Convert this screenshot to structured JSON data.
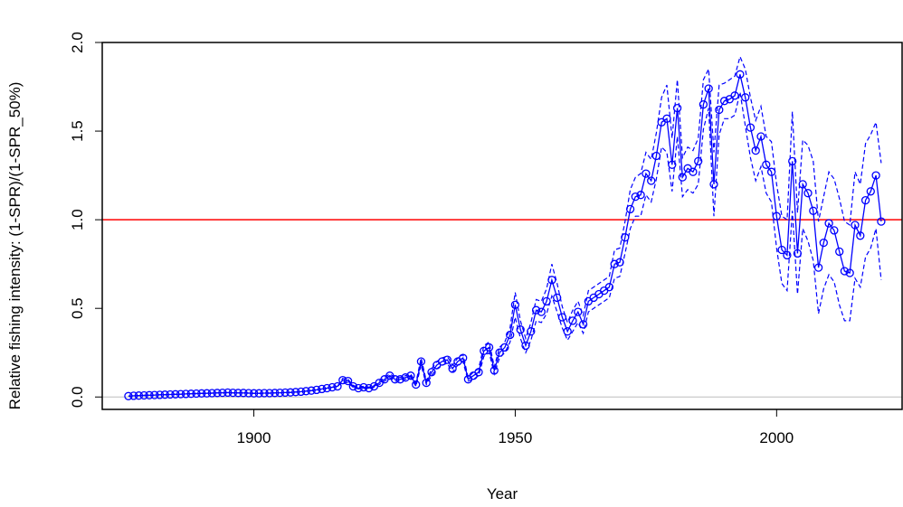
{
  "chart_data": {
    "type": "line",
    "title": "",
    "xlabel": "Year",
    "ylabel": "Relative fishing intensity: (1-SPR)/(1-SPR_50%)",
    "xlim": [
      1871,
      2024
    ],
    "ylim": [
      -0.07,
      2.0
    ],
    "x_ticks": [
      "1900",
      "1950",
      "2000"
    ],
    "x_tick_values": [
      1900,
      1950,
      2000
    ],
    "y_ticks": [
      "0.0",
      "0.5",
      "1.0",
      "1.5",
      "2.0"
    ],
    "y_tick_values": [
      0,
      0.5,
      1.0,
      1.5,
      2.0
    ],
    "reference_lines": [
      {
        "y": 1.0,
        "color": "#ff0000"
      },
      {
        "y": 0.0,
        "color": "#bdbdbd"
      }
    ],
    "series_color": "#0000ff",
    "x": [
      1876,
      1877,
      1878,
      1879,
      1880,
      1881,
      1882,
      1883,
      1884,
      1885,
      1886,
      1887,
      1888,
      1889,
      1890,
      1891,
      1892,
      1893,
      1894,
      1895,
      1896,
      1897,
      1898,
      1899,
      1900,
      1901,
      1902,
      1903,
      1904,
      1905,
      1906,
      1907,
      1908,
      1909,
      1910,
      1911,
      1912,
      1913,
      1914,
      1915,
      1916,
      1917,
      1918,
      1919,
      1920,
      1921,
      1922,
      1923,
      1924,
      1925,
      1926,
      1927,
      1928,
      1929,
      1930,
      1931,
      1932,
      1933,
      1934,
      1935,
      1936,
      1937,
      1938,
      1939,
      1940,
      1941,
      1942,
      1943,
      1944,
      1945,
      1946,
      1947,
      1948,
      1949,
      1950,
      1951,
      1952,
      1953,
      1954,
      1955,
      1956,
      1957,
      1958,
      1959,
      1960,
      1961,
      1962,
      1963,
      1964,
      1965,
      1966,
      1967,
      1968,
      1969,
      1970,
      1971,
      1972,
      1973,
      1974,
      1975,
      1976,
      1977,
      1978,
      1979,
      1980,
      1981,
      1982,
      1983,
      1984,
      1985,
      1986,
      1987,
      1988,
      1989,
      1990,
      1991,
      1992,
      1993,
      1994,
      1995,
      1996,
      1997,
      1998,
      1999,
      2000,
      2001,
      2002,
      2003,
      2004,
      2005,
      2006,
      2007,
      2008,
      2009,
      2010,
      2011,
      2012,
      2013,
      2014,
      2015,
      2016,
      2017,
      2018,
      2019,
      2020
    ],
    "series": [
      {
        "values": [
          0.005,
          0.007,
          0.008,
          0.009,
          0.01,
          0.011,
          0.012,
          0.013,
          0.014,
          0.015,
          0.016,
          0.017,
          0.018,
          0.019,
          0.02,
          0.021,
          0.022,
          0.023,
          0.024,
          0.025,
          0.024,
          0.023,
          0.023,
          0.022,
          0.021,
          0.021,
          0.022,
          0.022,
          0.023,
          0.024,
          0.025,
          0.026,
          0.028,
          0.03,
          0.033,
          0.036,
          0.04,
          0.045,
          0.05,
          0.055,
          0.06,
          0.095,
          0.09,
          0.06,
          0.05,
          0.055,
          0.05,
          0.06,
          0.08,
          0.1,
          0.12,
          0.1,
          0.1,
          0.11,
          0.12,
          0.07,
          0.2,
          0.08,
          0.14,
          0.18,
          0.2,
          0.21,
          0.16,
          0.2,
          0.22,
          0.1,
          0.12,
          0.14,
          0.26,
          0.28,
          0.15,
          0.25,
          0.28,
          0.35,
          0.52,
          0.38,
          0.29,
          0.37,
          0.49,
          0.48,
          0.54,
          0.66,
          0.56,
          0.45,
          0.37,
          0.43,
          0.48,
          0.41,
          0.54,
          0.56,
          0.58,
          0.6,
          0.62,
          0.75,
          0.76,
          0.9,
          1.06,
          1.13,
          1.14,
          1.26,
          1.22,
          1.36,
          1.55,
          1.57,
          1.31,
          1.63,
          1.24,
          1.29,
          1.27,
          1.33,
          1.65,
          1.74,
          1.2,
          1.62,
          1.67,
          1.68,
          1.7,
          1.82,
          1.69,
          1.52,
          1.39,
          1.47,
          1.31,
          1.27,
          1.02,
          0.83,
          0.8,
          1.33,
          0.81,
          1.2,
          1.15,
          1.05,
          0.73,
          0.87,
          0.98,
          0.94,
          0.82,
          0.71,
          0.7,
          0.97,
          0.91,
          1.11,
          1.16,
          1.25,
          0.99
        ]
      },
      {
        "values": [
          0.005,
          0.007,
          0.008,
          0.009,
          0.01,
          0.011,
          0.012,
          0.013,
          0.014,
          0.015,
          0.016,
          0.017,
          0.018,
          0.019,
          0.02,
          0.021,
          0.022,
          0.023,
          0.024,
          0.025,
          0.024,
          0.023,
          0.023,
          0.022,
          0.021,
          0.021,
          0.022,
          0.022,
          0.023,
          0.024,
          0.025,
          0.026,
          0.028,
          0.03,
          0.033,
          0.036,
          0.04,
          0.045,
          0.05,
          0.055,
          0.06,
          0.105,
          0.1,
          0.065,
          0.055,
          0.06,
          0.055,
          0.065,
          0.09,
          0.11,
          0.13,
          0.11,
          0.11,
          0.12,
          0.13,
          0.08,
          0.22,
          0.09,
          0.16,
          0.2,
          0.22,
          0.23,
          0.18,
          0.22,
          0.24,
          0.11,
          0.14,
          0.16,
          0.29,
          0.31,
          0.17,
          0.28,
          0.31,
          0.39,
          0.59,
          0.43,
          0.33,
          0.42,
          0.55,
          0.54,
          0.61,
          0.75,
          0.64,
          0.51,
          0.42,
          0.49,
          0.54,
          0.46,
          0.6,
          0.62,
          0.64,
          0.66,
          0.68,
          0.83,
          0.84,
          0.99,
          1.17,
          1.24,
          1.26,
          1.38,
          1.34,
          1.49,
          1.69,
          1.76,
          1.46,
          1.79,
          1.35,
          1.41,
          1.39,
          1.46,
          1.79,
          1.85,
          1.38,
          1.76,
          1.77,
          1.79,
          1.81,
          1.92,
          1.85,
          1.69,
          1.56,
          1.64,
          1.47,
          1.44,
          1.2,
          1.02,
          1.0,
          1.61,
          1.04,
          1.45,
          1.42,
          1.33,
          0.99,
          1.13,
          1.27,
          1.23,
          1.12,
          0.99,
          0.97,
          1.27,
          1.2,
          1.43,
          1.48,
          1.55,
          1.32
        ]
      },
      {
        "values": [
          0.005,
          0.007,
          0.008,
          0.009,
          0.01,
          0.011,
          0.012,
          0.013,
          0.014,
          0.015,
          0.016,
          0.017,
          0.018,
          0.019,
          0.02,
          0.021,
          0.022,
          0.023,
          0.024,
          0.025,
          0.024,
          0.023,
          0.023,
          0.022,
          0.021,
          0.021,
          0.022,
          0.022,
          0.023,
          0.024,
          0.025,
          0.026,
          0.028,
          0.03,
          0.033,
          0.036,
          0.04,
          0.045,
          0.05,
          0.055,
          0.06,
          0.085,
          0.08,
          0.055,
          0.045,
          0.05,
          0.045,
          0.055,
          0.07,
          0.09,
          0.11,
          0.09,
          0.09,
          0.1,
          0.11,
          0.06,
          0.18,
          0.07,
          0.12,
          0.16,
          0.18,
          0.19,
          0.14,
          0.18,
          0.2,
          0.09,
          0.1,
          0.12,
          0.23,
          0.25,
          0.13,
          0.22,
          0.25,
          0.31,
          0.45,
          0.33,
          0.25,
          0.32,
          0.43,
          0.42,
          0.47,
          0.57,
          0.48,
          0.39,
          0.32,
          0.37,
          0.42,
          0.36,
          0.48,
          0.5,
          0.52,
          0.54,
          0.56,
          0.67,
          0.68,
          0.81,
          0.95,
          1.02,
          1.02,
          1.14,
          1.1,
          1.23,
          1.41,
          1.38,
          1.16,
          1.47,
          1.13,
          1.17,
          1.15,
          1.2,
          1.51,
          1.63,
          1.02,
          1.48,
          1.57,
          1.57,
          1.59,
          1.72,
          1.53,
          1.35,
          1.22,
          1.3,
          1.15,
          1.1,
          0.84,
          0.64,
          0.6,
          1.05,
          0.58,
          0.95,
          0.88,
          0.77,
          0.47,
          0.61,
          0.69,
          0.65,
          0.52,
          0.43,
          0.43,
          0.67,
          0.62,
          0.79,
          0.84,
          0.95,
          0.66
        ]
      }
    ]
  }
}
